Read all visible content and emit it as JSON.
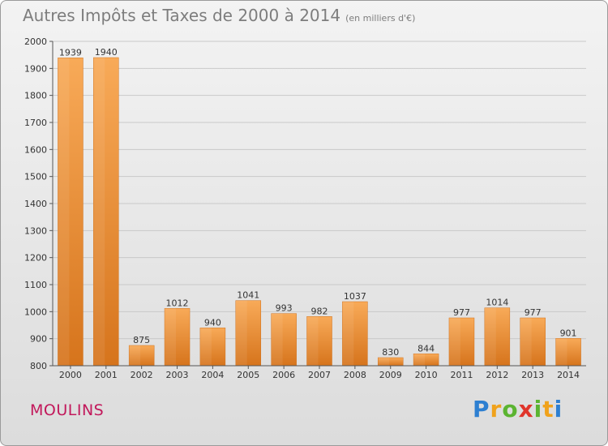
{
  "title": "Autres Impôts et Taxes de 2000 à 2014",
  "unit": "(en milliers d'€)",
  "city": "MOULINS",
  "logo": "Proxiti",
  "colors": {
    "bar_top": "#f6a552",
    "bar_bottom": "#d9771f",
    "grid": "#c8c8c8",
    "axis_text": "#333333"
  },
  "chart_data": {
    "type": "bar",
    "categories": [
      "2000",
      "2001",
      "2002",
      "2003",
      "2004",
      "2005",
      "2006",
      "2007",
      "2008",
      "2009",
      "2010",
      "2011",
      "2012",
      "2013",
      "2014"
    ],
    "values": [
      1939,
      1940,
      875,
      1012,
      940,
      1041,
      993,
      982,
      1037,
      830,
      844,
      977,
      1014,
      977,
      901
    ],
    "ylim": [
      800,
      2000
    ],
    "yticks": [
      800,
      900,
      1000,
      1100,
      1200,
      1300,
      1400,
      1500,
      1600,
      1700,
      1800,
      1900,
      2000
    ],
    "grid": true,
    "data_labels": true
  }
}
